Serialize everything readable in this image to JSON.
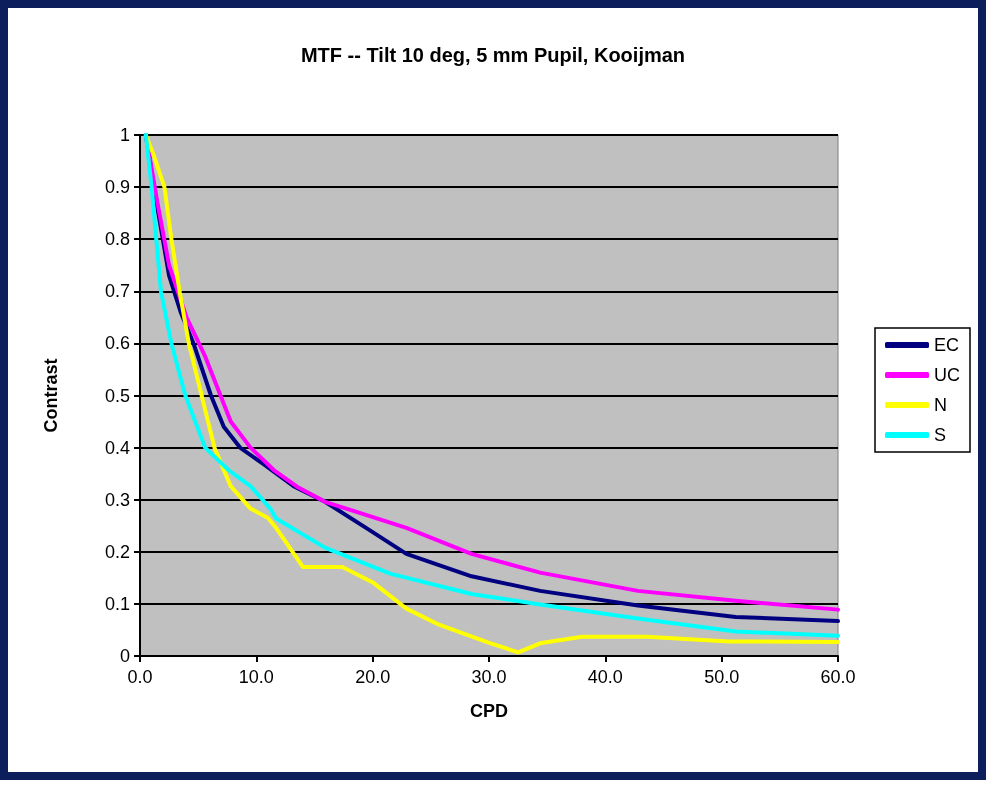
{
  "chart_data": {
    "type": "line",
    "title": "MTF -- Tilt 10 deg, 5 mm Pupil, Kooijman",
    "xlabel": "CPD",
    "ylabel": "Contrast",
    "xlim": [
      0,
      60
    ],
    "xticks": [
      {
        "value": 0,
        "label": "0.0"
      },
      {
        "value": 10,
        "label": "10.0"
      },
      {
        "value": 20,
        "label": "20.0"
      },
      {
        "value": 30,
        "label": "30.0"
      },
      {
        "value": 40,
        "label": "40.0"
      },
      {
        "value": 50,
        "label": "50.0"
      },
      {
        "value": 60,
        "label": "60.0"
      }
    ],
    "ylim": [
      0,
      1
    ],
    "yticks": [
      0,
      0.1,
      0.2,
      0.3,
      0.4,
      0.5,
      0.6,
      0.7,
      0.8,
      0.9,
      1
    ],
    "grid": "y",
    "legend": "right",
    "marker": "none",
    "line_style": "solid",
    "series": [
      {
        "name": "EC",
        "color": "#000080",
        "x": [
          0.5,
          1.5,
          2.5,
          3.5,
          4.6,
          6.1,
          7.2,
          8.6,
          10.5,
          13.2,
          15.9,
          19.5,
          22.9,
          28.5,
          34.4,
          42.8,
          51.2,
          60
        ],
        "values": [
          1.0,
          0.86,
          0.73,
          0.66,
          0.6,
          0.5,
          0.44,
          0.4,
          0.37,
          0.326,
          0.296,
          0.245,
          0.196,
          0.153,
          0.125,
          0.097,
          0.075,
          0.067
        ]
      },
      {
        "name": "UC",
        "color": "#ff00ff",
        "x": [
          0.5,
          1.5,
          2.5,
          4.0,
          5.6,
          7.8,
          9.5,
          11.5,
          13.5,
          15.9,
          22.9,
          28.5,
          34.4,
          42.8,
          51.2,
          60
        ],
        "values": [
          1.0,
          0.87,
          0.75,
          0.65,
          0.575,
          0.45,
          0.4,
          0.357,
          0.325,
          0.296,
          0.246,
          0.196,
          0.16,
          0.125,
          0.106,
          0.089
        ]
      },
      {
        "name": "N",
        "color": "#ffff00",
        "x": [
          0.5,
          1.2,
          2.1,
          2.7,
          3.4,
          4.2,
          5.3,
          6.4,
          7.8,
          9.5,
          11.0,
          11.7,
          14.0,
          17.4,
          20.1,
          22.9,
          25.7,
          29.9,
          32.5,
          34.5,
          38.0,
          43.6,
          50.6,
          60
        ],
        "values": [
          1.0,
          0.96,
          0.9,
          0.8,
          0.7,
          0.6,
          0.5,
          0.4,
          0.326,
          0.283,
          0.265,
          0.246,
          0.171,
          0.171,
          0.14,
          0.091,
          0.06,
          0.026,
          0.007,
          0.025,
          0.037,
          0.037,
          0.028,
          0.027
        ]
      },
      {
        "name": "S",
        "color": "#00ffff",
        "x": [
          0.5,
          1.0,
          1.4,
          1.8,
          2.7,
          3.9,
          5.6,
          7.6,
          9.5,
          11.2,
          11.7,
          15.9,
          21.5,
          28.5,
          34.4,
          42.8,
          51.2,
          60
        ],
        "values": [
          1.0,
          0.9,
          0.8,
          0.7,
          0.6,
          0.5,
          0.4,
          0.357,
          0.326,
          0.283,
          0.264,
          0.208,
          0.158,
          0.119,
          0.099,
          0.072,
          0.047,
          0.039
        ]
      }
    ]
  }
}
